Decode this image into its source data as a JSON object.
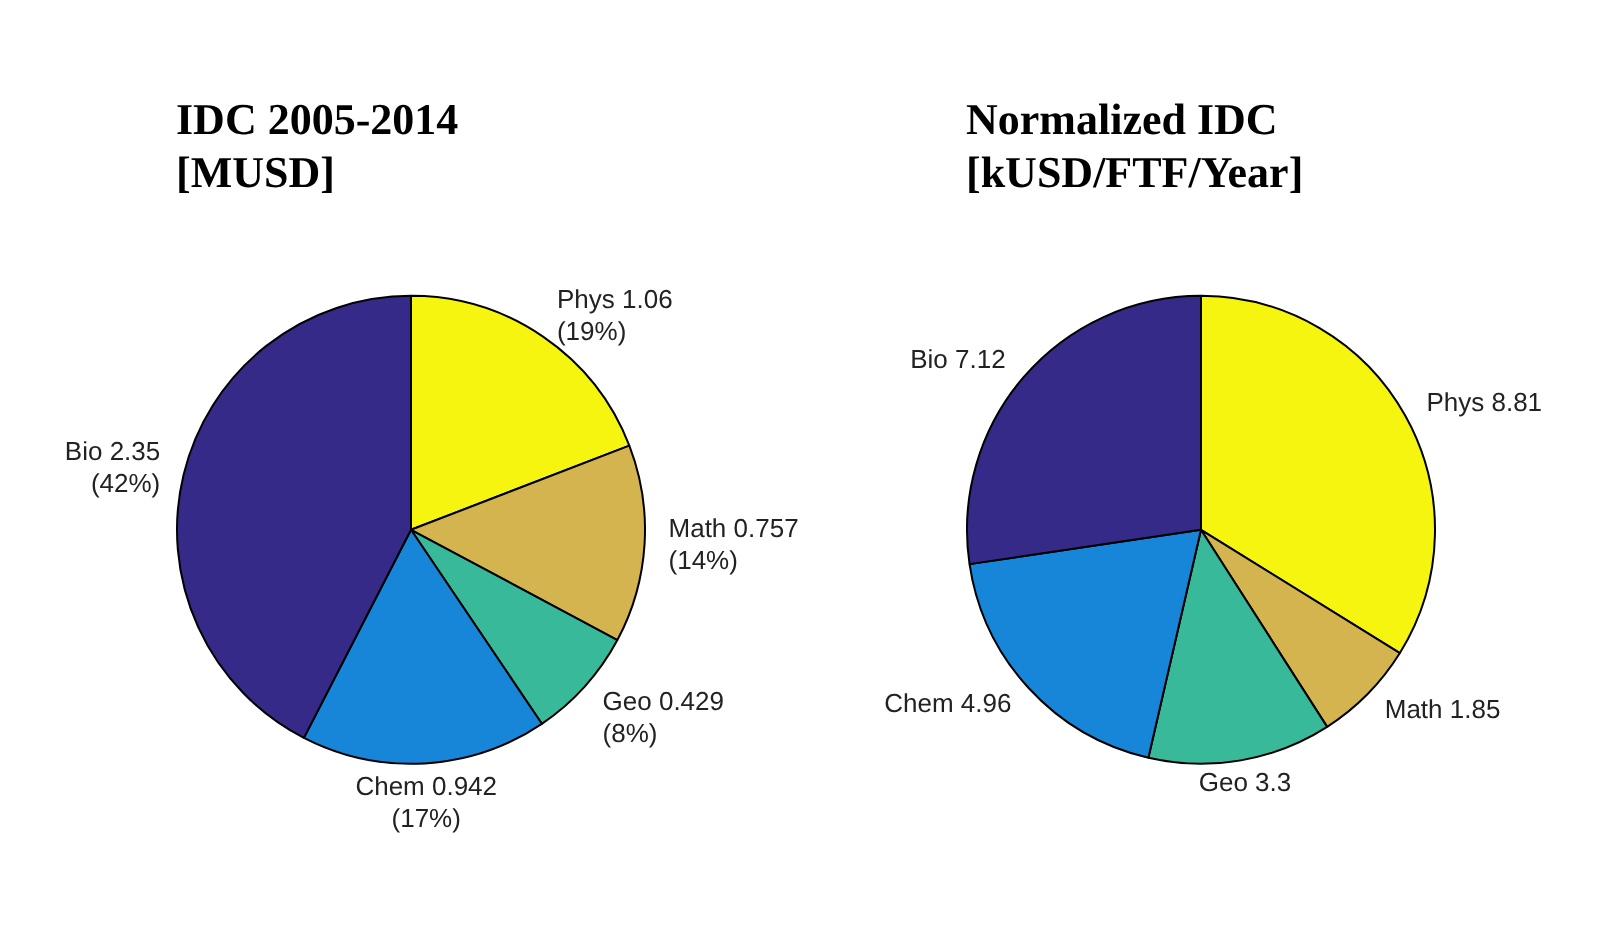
{
  "chart_data": [
    {
      "type": "pie",
      "title": "IDC 2005-2014\n[MUSD]",
      "categories": [
        "Phys",
        "Math",
        "Geo",
        "Chem",
        "Bio"
      ],
      "values": [
        1.06,
        0.757,
        0.429,
        0.942,
        2.35
      ],
      "colors": [
        "#f5f50f",
        "#d4b44f",
        "#38b99a",
        "#1785d8",
        "#352a87"
      ],
      "value_labels": [
        "1.06\n(19%)",
        "0.757\n(14%)",
        "0.429\n(8%)",
        "0.942\n(17%)",
        "2.35\n(42%)"
      ]
    },
    {
      "type": "pie",
      "title": "Normalized IDC\n[kUSD/FTF/Year]",
      "categories": [
        "Phys",
        "Math",
        "Geo",
        "Chem",
        "Bio"
      ],
      "values": [
        8.81,
        1.85,
        3.3,
        4.96,
        7.12
      ],
      "colors": [
        "#f5f50f",
        "#d4b44f",
        "#38b99a",
        "#1785d8",
        "#352a87"
      ],
      "value_labels": [
        "8.81",
        "1.85",
        "3.3",
        "4.96",
        "7.12"
      ]
    }
  ]
}
